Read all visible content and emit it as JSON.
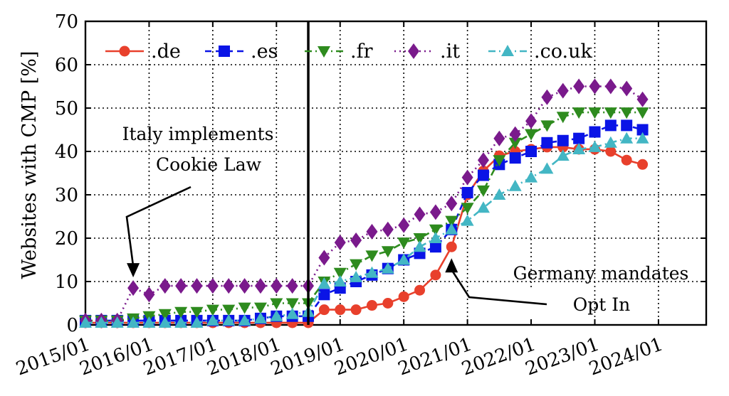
{
  "chart_data": {
    "type": "line",
    "ylabel": "Websites with CMP [%]",
    "xlabel": "",
    "ylim": [
      0,
      70
    ],
    "xlim": [
      "2015/01",
      "2024/10"
    ],
    "grid": true,
    "legend_position": "top",
    "yticks": [
      "0",
      "10",
      "20",
      "30",
      "40",
      "50",
      "60",
      "70"
    ],
    "xticks": [
      "2015/01",
      "2016/01",
      "2017/01",
      "2018/01",
      "2019/01",
      "2020/01",
      "2021/01",
      "2022/01",
      "2023/01",
      "2024/01"
    ],
    "vline_at": "2018/07",
    "series": [
      {
        "name": ".de",
        "color": "#e8402c",
        "marker": "circle",
        "dash": "solid",
        "x": [
          "2015/01",
          "2015/04",
          "2015/07",
          "2015/10",
          "2016/01",
          "2016/04",
          "2016/07",
          "2016/10",
          "2017/01",
          "2017/04",
          "2017/07",
          "2017/10",
          "2018/01",
          "2018/04",
          "2018/07",
          "2018/10",
          "2019/01",
          "2019/04",
          "2019/07",
          "2019/10",
          "2020/01",
          "2020/04",
          "2020/07",
          "2020/10",
          "2021/01",
          "2021/04",
          "2021/07",
          "2021/10",
          "2022/01",
          "2022/04",
          "2022/07",
          "2022/10",
          "2023/01",
          "2023/04",
          "2023/07",
          "2023/10"
        ],
        "y": [
          0.5,
          0.5,
          0.5,
          0.5,
          0.5,
          0.5,
          0.5,
          0.5,
          0.5,
          0.5,
          0.5,
          0.5,
          0.5,
          0.5,
          0.5,
          3.5,
          3.5,
          3.5,
          4.5,
          5,
          6.5,
          8,
          11.5,
          18,
          30,
          35.5,
          39,
          40,
          40.5,
          41,
          41,
          40.5,
          40.5,
          40,
          38,
          37
        ]
      },
      {
        "name": ".es",
        "color": "#0a14e6",
        "marker": "square",
        "dash": "dashed",
        "x": [
          "2015/01",
          "2015/04",
          "2015/07",
          "2015/10",
          "2016/01",
          "2016/04",
          "2016/07",
          "2016/10",
          "2017/01",
          "2017/04",
          "2017/07",
          "2017/10",
          "2018/01",
          "2018/04",
          "2018/07",
          "2018/10",
          "2019/01",
          "2019/04",
          "2019/07",
          "2019/10",
          "2020/01",
          "2020/04",
          "2020/07",
          "2020/10",
          "2021/01",
          "2021/04",
          "2021/07",
          "2021/10",
          "2022/01",
          "2022/04",
          "2022/07",
          "2022/10",
          "2023/01",
          "2023/04",
          "2023/07",
          "2023/10"
        ],
        "y": [
          1,
          1,
          1,
          1,
          1,
          1,
          1,
          1,
          1,
          1,
          1,
          1.5,
          2,
          2,
          2,
          7,
          8.5,
          10,
          11.5,
          13,
          15,
          16.5,
          18,
          22,
          30.5,
          34.5,
          37,
          38.5,
          40,
          42,
          42.5,
          43,
          44.5,
          46,
          46,
          45
        ]
      },
      {
        "name": ".fr",
        "color": "#2e8b1e",
        "marker": "triangle-down",
        "dash": "dashdot",
        "x": [
          "2015/01",
          "2015/04",
          "2015/07",
          "2015/10",
          "2016/01",
          "2016/04",
          "2016/07",
          "2016/10",
          "2017/01",
          "2017/04",
          "2017/07",
          "2017/10",
          "2018/01",
          "2018/04",
          "2018/07",
          "2018/10",
          "2019/01",
          "2019/04",
          "2019/07",
          "2019/10",
          "2020/01",
          "2020/04",
          "2020/07",
          "2020/10",
          "2021/01",
          "2021/04",
          "2021/07",
          "2021/10",
          "2022/01",
          "2022/04",
          "2022/07",
          "2022/10",
          "2023/01",
          "2023/04",
          "2023/07",
          "2023/10"
        ],
        "y": [
          1,
          1,
          1,
          1.5,
          2,
          2.5,
          3,
          3,
          3.5,
          3.5,
          4,
          4,
          5,
          5,
          5,
          10,
          12,
          14,
          16,
          17,
          19,
          20,
          22,
          24,
          27,
          31,
          38,
          42,
          44,
          46,
          48,
          49,
          49,
          49,
          49,
          49
        ]
      },
      {
        "name": ".it",
        "color": "#7a1a8c",
        "marker": "diamond",
        "dash": "dotted",
        "x": [
          "2015/01",
          "2015/04",
          "2015/07",
          "2015/10",
          "2016/01",
          "2016/04",
          "2016/07",
          "2016/10",
          "2017/01",
          "2017/04",
          "2017/07",
          "2017/10",
          "2018/01",
          "2018/04",
          "2018/07",
          "2018/10",
          "2019/01",
          "2019/04",
          "2019/07",
          "2019/10",
          "2020/01",
          "2020/04",
          "2020/07",
          "2020/10",
          "2021/01",
          "2021/04",
          "2021/07",
          "2021/10",
          "2022/01",
          "2022/04",
          "2022/07",
          "2022/10",
          "2023/01",
          "2023/04",
          "2023/07",
          "2023/10"
        ],
        "y": [
          1,
          1,
          1,
          8.5,
          7,
          9,
          9,
          9,
          9,
          9,
          9,
          9,
          9,
          9,
          9,
          15.5,
          19,
          19.5,
          21.5,
          22,
          23,
          25.5,
          26,
          28,
          34,
          38,
          43,
          44,
          47,
          52.5,
          54,
          55,
          55,
          55,
          54.5,
          52
        ]
      },
      {
        "name": ".co.uk",
        "color": "#43b6c4",
        "marker": "triangle-up",
        "dash": "dashdot",
        "x": [
          "2015/01",
          "2015/04",
          "2015/07",
          "2015/10",
          "2016/01",
          "2016/04",
          "2016/07",
          "2016/10",
          "2017/01",
          "2017/04",
          "2017/07",
          "2017/10",
          "2018/01",
          "2018/04",
          "2018/07",
          "2018/10",
          "2019/01",
          "2019/04",
          "2019/07",
          "2019/10",
          "2020/01",
          "2020/04",
          "2020/07",
          "2020/10",
          "2021/01",
          "2021/04",
          "2021/07",
          "2021/10",
          "2022/01",
          "2022/04",
          "2022/07",
          "2022/10",
          "2023/01",
          "2023/04",
          "2023/07",
          "2023/10"
        ],
        "y": [
          0.5,
          0.5,
          0.5,
          0.5,
          0.5,
          0.5,
          0.5,
          0.5,
          1,
          1,
          1,
          1.5,
          2,
          2.5,
          3,
          9.5,
          10,
          11,
          12,
          13,
          15,
          18,
          20,
          22,
          24,
          27,
          30,
          32,
          34,
          36,
          39,
          40.5,
          41,
          42,
          43,
          43
        ]
      }
    ],
    "annotations": [
      {
        "text_lines": [
          "Italy implements",
          "Cookie Law"
        ],
        "arrow_to": [
          "2015/10",
          9
        ]
      },
      {
        "text_lines": [
          "Germany mandates",
          "Opt In"
        ],
        "arrow_to": [
          "2020/10",
          17
        ]
      }
    ]
  }
}
